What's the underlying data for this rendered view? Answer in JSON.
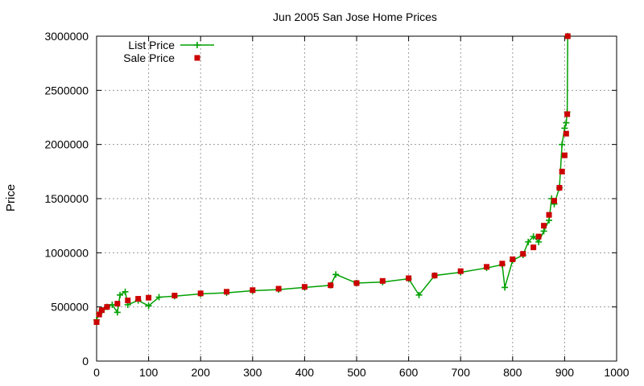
{
  "chart_data": {
    "type": "scatter",
    "title": "Jun 2005 San Jose Home Prices",
    "xlabel": "",
    "ylabel": "Price",
    "xlim": [
      0,
      1000
    ],
    "ylim": [
      0,
      3000000
    ],
    "xticks": [
      0,
      100,
      200,
      300,
      400,
      500,
      600,
      700,
      800,
      900,
      1000
    ],
    "yticks": [
      0,
      500000,
      1000000,
      1500000,
      2000000,
      2500000,
      3000000
    ],
    "xtick_labels": [
      "0",
      "100",
      "200",
      "300",
      "400",
      "500",
      "600",
      "700",
      "800",
      "900",
      "1000"
    ],
    "ytick_labels": [
      "0",
      "500000",
      "1000000",
      "1500000",
      "2000000",
      "2500000",
      "3000000"
    ],
    "grid": true,
    "legend_position": "top-left",
    "series": [
      {
        "name": "List Price",
        "style": "linespoints",
        "marker": "plus",
        "color": "#00a000",
        "points": [
          [
            0,
            380000
          ],
          [
            5,
            440000
          ],
          [
            10,
            470000
          ],
          [
            20,
            500000
          ],
          [
            30,
            520000
          ],
          [
            40,
            450000
          ],
          [
            45,
            610000
          ],
          [
            55,
            640000
          ],
          [
            60,
            520000
          ],
          [
            80,
            560000
          ],
          [
            100,
            510000
          ],
          [
            120,
            590000
          ],
          [
            150,
            600000
          ],
          [
            200,
            620000
          ],
          [
            250,
            630000
          ],
          [
            300,
            650000
          ],
          [
            350,
            660000
          ],
          [
            400,
            680000
          ],
          [
            450,
            700000
          ],
          [
            460,
            800000
          ],
          [
            500,
            720000
          ],
          [
            550,
            730000
          ],
          [
            600,
            760000
          ],
          [
            620,
            610000
          ],
          [
            650,
            790000
          ],
          [
            700,
            820000
          ],
          [
            750,
            860000
          ],
          [
            780,
            890000
          ],
          [
            785,
            680000
          ],
          [
            800,
            930000
          ],
          [
            820,
            980000
          ],
          [
            830,
            1100000
          ],
          [
            840,
            1150000
          ],
          [
            850,
            1100000
          ],
          [
            860,
            1200000
          ],
          [
            870,
            1300000
          ],
          [
            875,
            1500000
          ],
          [
            880,
            1450000
          ],
          [
            890,
            1600000
          ],
          [
            895,
            2000000
          ],
          [
            900,
            2150000
          ],
          [
            903,
            2200000
          ],
          [
            905,
            2300000
          ],
          [
            906,
            3000000
          ]
        ]
      },
      {
        "name": "Sale Price",
        "style": "points",
        "marker": "square",
        "color": "#cc0000",
        "points": [
          [
            0,
            360000
          ],
          [
            5,
            430000
          ],
          [
            10,
            470000
          ],
          [
            20,
            500000
          ],
          [
            40,
            530000
          ],
          [
            60,
            560000
          ],
          [
            80,
            575000
          ],
          [
            100,
            585000
          ],
          [
            150,
            605000
          ],
          [
            200,
            625000
          ],
          [
            250,
            640000
          ],
          [
            300,
            655000
          ],
          [
            350,
            668000
          ],
          [
            400,
            685000
          ],
          [
            450,
            700000
          ],
          [
            500,
            720000
          ],
          [
            550,
            740000
          ],
          [
            600,
            765000
          ],
          [
            650,
            790000
          ],
          [
            700,
            830000
          ],
          [
            750,
            870000
          ],
          [
            780,
            900000
          ],
          [
            800,
            940000
          ],
          [
            820,
            990000
          ],
          [
            840,
            1050000
          ],
          [
            850,
            1150000
          ],
          [
            860,
            1250000
          ],
          [
            870,
            1350000
          ],
          [
            880,
            1480000
          ],
          [
            890,
            1600000
          ],
          [
            895,
            1750000
          ],
          [
            900,
            1900000
          ],
          [
            903,
            2100000
          ],
          [
            905,
            2280000
          ],
          [
            906,
            3000000
          ]
        ]
      }
    ]
  }
}
